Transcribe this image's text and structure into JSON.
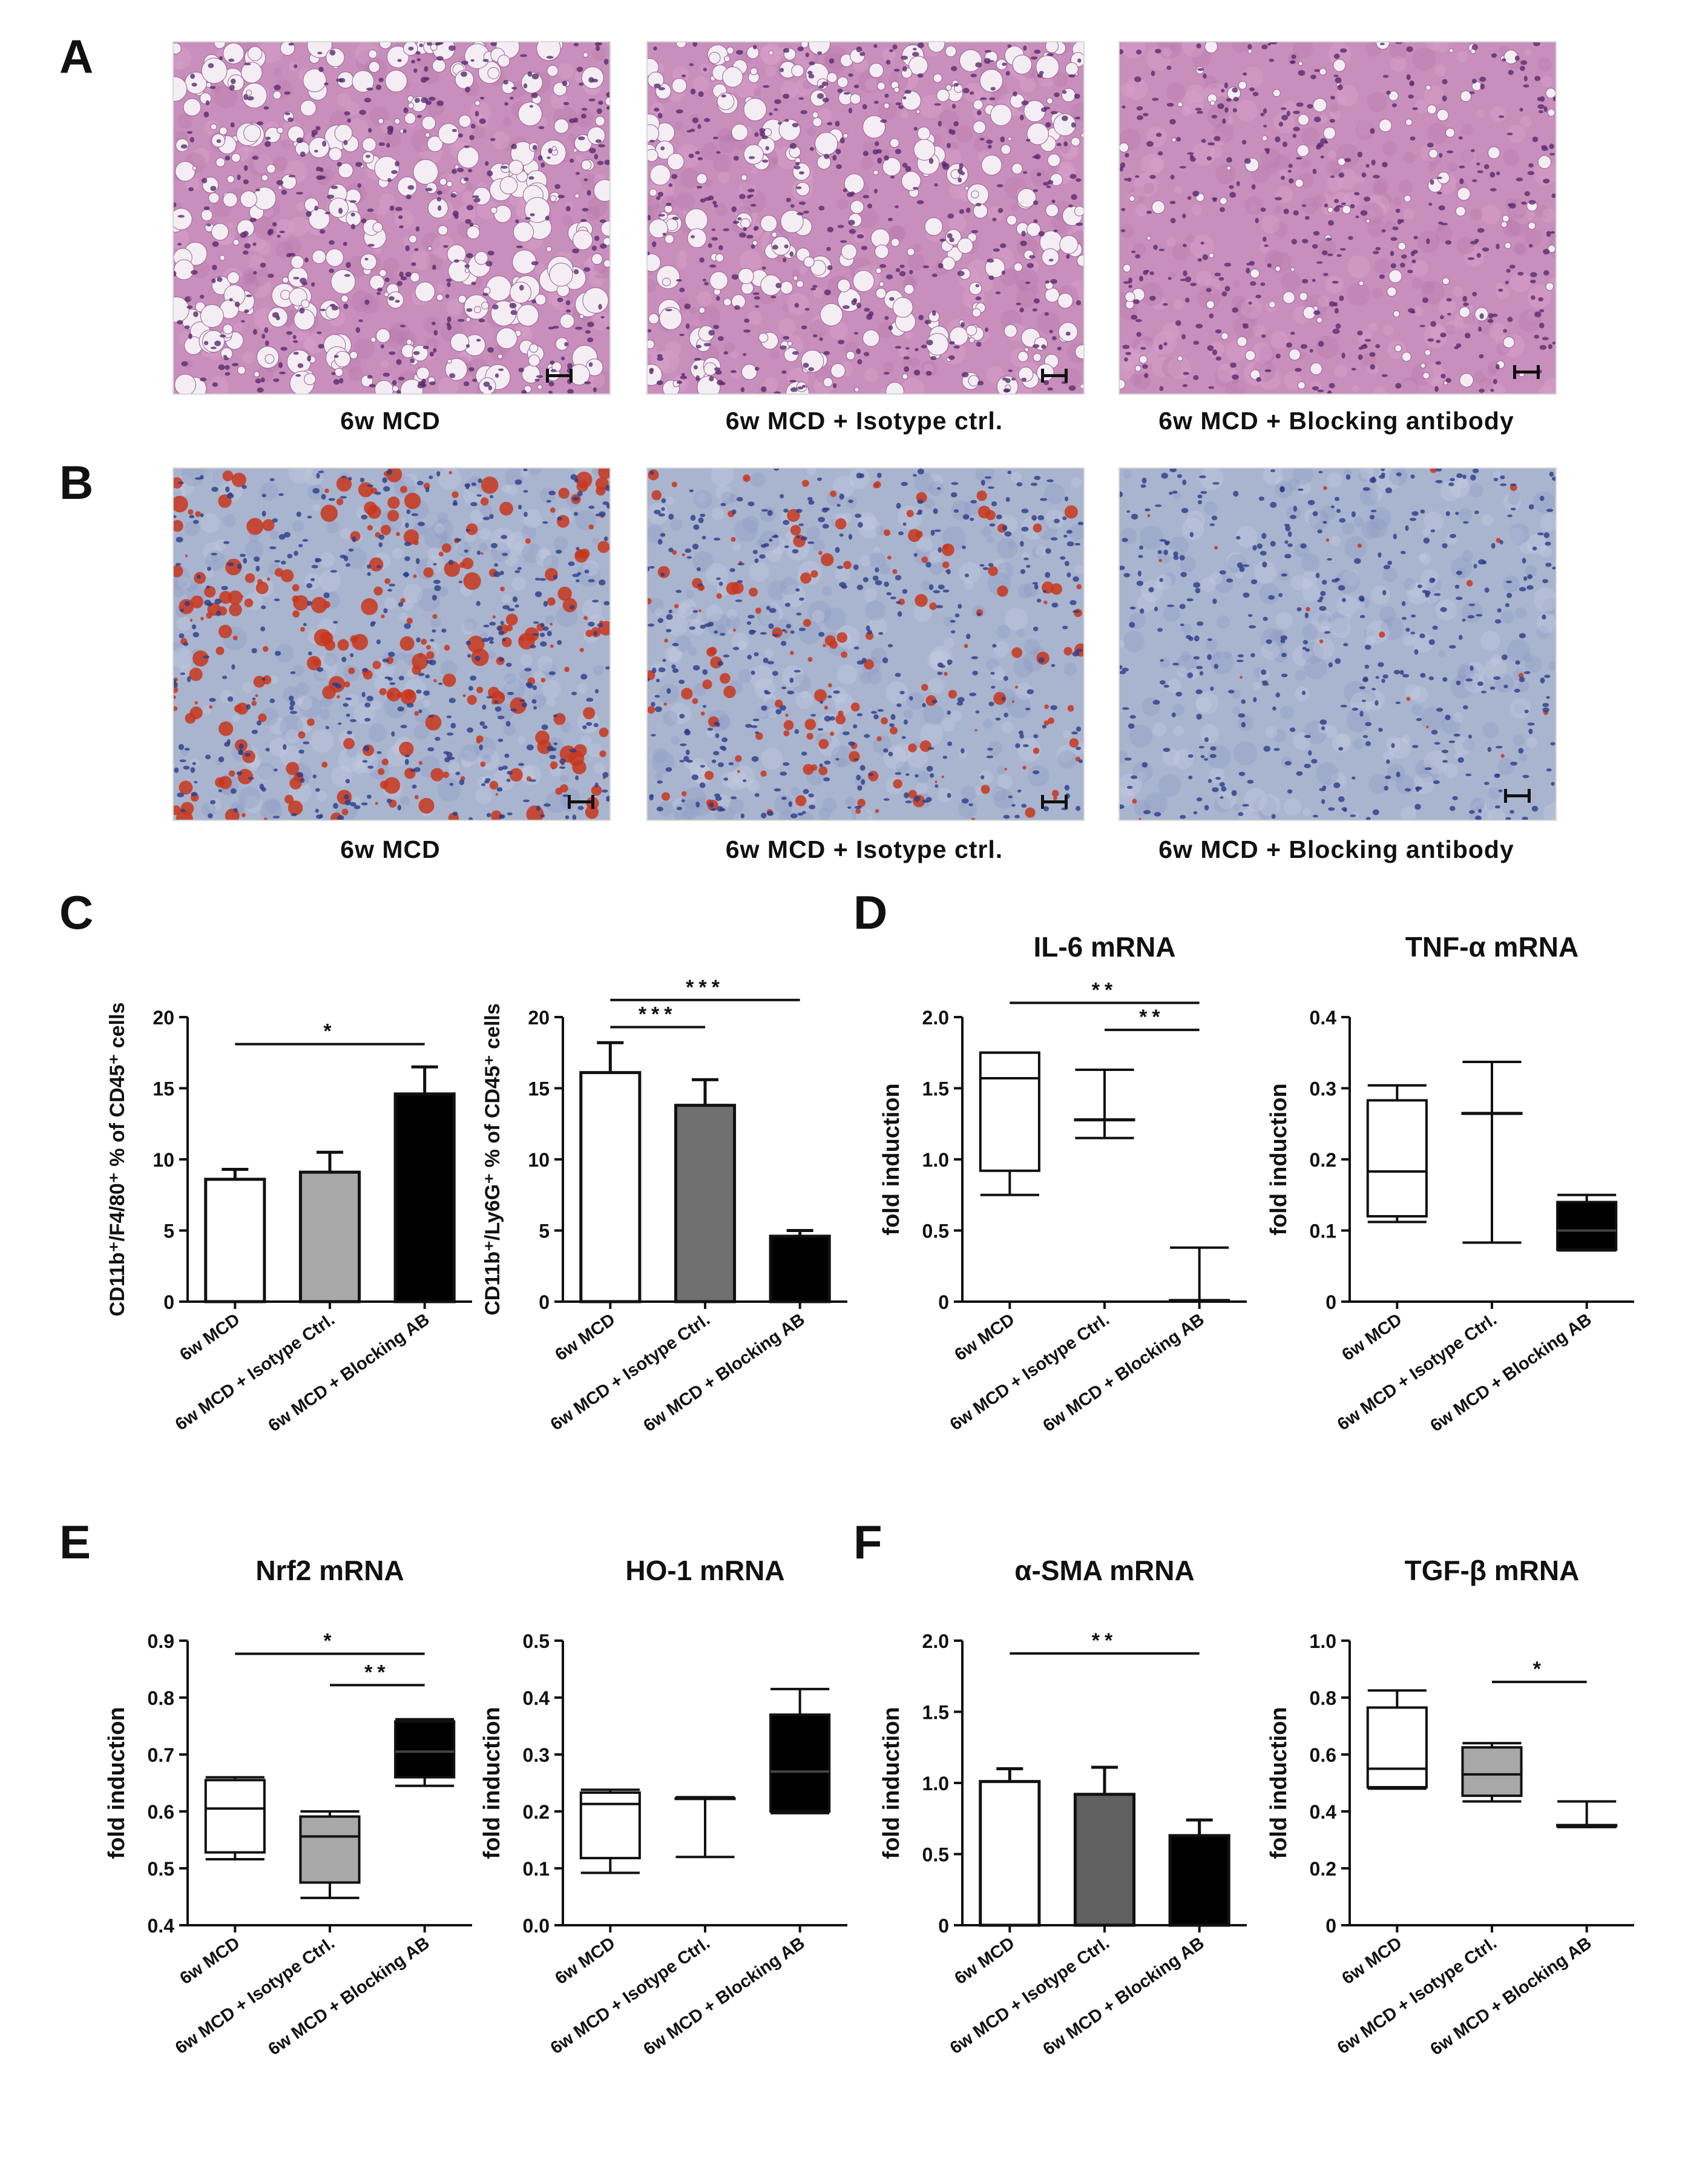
{
  "figure": {
    "panel_letters": [
      "A",
      "B",
      "C",
      "D",
      "E",
      "F"
    ],
    "micrographs": {
      "row_a": [
        {
          "caption": "6w MCD",
          "stain": "H&E",
          "steatosis": 1.0
        },
        {
          "caption": "6w MCD + Isotype ctrl.",
          "stain": "H&E",
          "steatosis": 0.85
        },
        {
          "caption": "6w MCD + Blocking antibody",
          "stain": "H&E",
          "steatosis": 0.25
        }
      ],
      "row_b": [
        {
          "caption": "6w MCD",
          "stain": "Oil Red O",
          "steatosis": 1.0
        },
        {
          "caption": "6w MCD + Isotype ctrl.",
          "stain": "Oil Red O",
          "steatosis": 0.6
        },
        {
          "caption": "6w MCD + Blocking antibody",
          "stain": "Oil Red O",
          "steatosis": 0.05
        }
      ]
    },
    "colors": {
      "he_bg": "#c98fbc",
      "he_nuclei": "#5a2a6e",
      "oro_bg": "#a9b4cf",
      "oro_nuclei": "#2a3c88",
      "oro_lipid": "#c8361c"
    }
  },
  "chart_data": [
    {
      "id": "C1",
      "type": "bar",
      "title": "",
      "ylabel": "CD11b⁺/F4/80⁺ % of CD45⁺ cells",
      "categories": [
        "6w MCD",
        "6w MCD + Isotype Ctrl.",
        "6w MCD + Blocking AB"
      ],
      "values": [
        8.6,
        9.1,
        14.6
      ],
      "errors": [
        0.7,
        1.4,
        1.9
      ],
      "colors": [
        "#ffffff",
        "#a8a8a8",
        "#000000"
      ],
      "ylim": [
        0,
        20
      ],
      "yticks": [
        "0",
        "5",
        "10",
        "15",
        "20"
      ],
      "ytick_values": [
        0,
        5,
        10,
        15,
        20
      ],
      "significance": [
        {
          "from": 0,
          "to": 2,
          "label": "*",
          "y": 18.1
        }
      ]
    },
    {
      "id": "C2",
      "type": "bar",
      "title": "",
      "ylabel": "CD11b⁺/Ly6G⁺ % of CD45⁺ cells",
      "categories": [
        "6w MCD",
        "6w MCD + Isotype Ctrl.",
        "6w MCD + Blocking AB"
      ],
      "values": [
        16.1,
        13.8,
        4.6
      ],
      "errors": [
        2.1,
        1.8,
        0.4
      ],
      "colors": [
        "#ffffff",
        "#707070",
        "#000000"
      ],
      "ylim": [
        0,
        20
      ],
      "yticks": [
        "0",
        "5",
        "10",
        "15",
        "20"
      ],
      "ytick_values": [
        0,
        5,
        10,
        15,
        20
      ],
      "significance": [
        {
          "from": 0,
          "to": 2,
          "label": "***",
          "y": 21.2
        },
        {
          "from": 0,
          "to": 1,
          "label": "***",
          "y": 19.3
        }
      ]
    },
    {
      "id": "D1",
      "type": "box",
      "title": "IL-6 mRNA",
      "ylabel": "fold induction",
      "categories": [
        "6w MCD",
        "6w MCD + Isotype Ctrl.",
        "6w MCD + Blocking AB"
      ],
      "boxes": [
        {
          "min": 0.75,
          "q1": 0.92,
          "median": 1.57,
          "q3": 1.75,
          "max": 1.75
        },
        {
          "min": 1.15,
          "q1": 1.28,
          "median": 1.28,
          "q3": 1.28,
          "max": 1.63
        },
        {
          "min": 0.0,
          "q1": 0.0,
          "median": 0.01,
          "q3": 0.01,
          "max": 0.38
        }
      ],
      "fills": [
        "#ffffff",
        "#ffffff",
        "#ffffff"
      ],
      "ylim": [
        0,
        2.0
      ],
      "yticks": [
        "0",
        "0.5",
        "1.0",
        "1.5",
        "2.0"
      ],
      "ytick_values": [
        0,
        0.5,
        1.0,
        1.5,
        2.0
      ],
      "significance": [
        {
          "from": 0,
          "to": 2,
          "label": "**",
          "y": 2.1
        },
        {
          "from": 1,
          "to": 2,
          "label": "**",
          "y": 1.91
        }
      ]
    },
    {
      "id": "D2",
      "type": "box",
      "title": "TNF-α mRNA",
      "ylabel": "fold induction",
      "categories": [
        "6w MCD",
        "6w MCD + Isotype Ctrl.",
        "6w MCD + Blocking AB"
      ],
      "boxes": [
        {
          "min": 0.112,
          "q1": 0.12,
          "median": 0.183,
          "q3": 0.283,
          "max": 0.304
        },
        {
          "min": 0.083,
          "q1": 0.265,
          "median": 0.265,
          "q3": 0.265,
          "max": 0.337
        },
        {
          "min": 0.072,
          "q1": 0.073,
          "median": 0.1,
          "q3": 0.14,
          "max": 0.15
        }
      ],
      "fills": [
        "#ffffff",
        "#ffffff",
        "#000000"
      ],
      "ylim": [
        0,
        0.4
      ],
      "yticks": [
        "0",
        "0.1",
        "0.2",
        "0.3",
        "0.4"
      ],
      "ytick_values": [
        0,
        0.1,
        0.2,
        0.3,
        0.4
      ],
      "significance": []
    },
    {
      "id": "E1",
      "type": "box",
      "title": "Nrf2 mRNA",
      "ylabel": "fold induction",
      "categories": [
        "6w MCD",
        "6w MCD + Isotype Ctrl.",
        "6w MCD + Blocking AB"
      ],
      "boxes": [
        {
          "min": 0.516,
          "q1": 0.528,
          "median": 0.605,
          "q3": 0.655,
          "max": 0.66
        },
        {
          "min": 0.448,
          "q1": 0.475,
          "median": 0.556,
          "q3": 0.591,
          "max": 0.6
        },
        {
          "min": 0.645,
          "q1": 0.66,
          "median": 0.705,
          "q3": 0.758,
          "max": 0.762
        }
      ],
      "fills": [
        "#ffffff",
        "#a8a8a8",
        "#000000"
      ],
      "ylim": [
        0.4,
        0.9
      ],
      "yticks": [
        "0.4",
        "0.5",
        "0.6",
        "0.7",
        "0.8",
        "0.9"
      ],
      "ytick_values": [
        0.4,
        0.5,
        0.6,
        0.7,
        0.8,
        0.9
      ],
      "significance": [
        {
          "from": 0,
          "to": 2,
          "label": "*",
          "y": 0.877
        },
        {
          "from": 1,
          "to": 2,
          "label": "**",
          "y": 0.822
        }
      ]
    },
    {
      "id": "E2",
      "type": "box",
      "title": "HO-1 mRNA",
      "ylabel": "fold induction",
      "categories": [
        "6w MCD",
        "6w MCD + Isotype Ctrl.",
        "6w MCD + Blocking AB"
      ],
      "boxes": [
        {
          "min": 0.092,
          "q1": 0.118,
          "median": 0.213,
          "q3": 0.233,
          "max": 0.238
        },
        {
          "min": 0.12,
          "q1": 0.223,
          "median": 0.223,
          "q3": 0.223,
          "max": 0.225
        },
        {
          "min": 0.197,
          "q1": 0.2,
          "median": 0.27,
          "q3": 0.37,
          "max": 0.415
        }
      ],
      "fills": [
        "#ffffff",
        "#ffffff",
        "#000000"
      ],
      "ylim": [
        0,
        0.5
      ],
      "yticks": [
        "0.0",
        "0.1",
        "0.2",
        "0.3",
        "0.4",
        "0.5"
      ],
      "ytick_values": [
        0,
        0.1,
        0.2,
        0.3,
        0.4,
        0.5
      ],
      "significance": []
    },
    {
      "id": "F1",
      "type": "bar",
      "title": "α-SMA mRNA",
      "ylabel": "fold induction",
      "categories": [
        "6w MCD",
        "6w MCD + Isotype Ctrl.",
        "6w MCD + Blocking AB"
      ],
      "values": [
        1.01,
        0.92,
        0.63
      ],
      "errors": [
        0.09,
        0.19,
        0.11
      ],
      "colors": [
        "#ffffff",
        "#606060",
        "#000000"
      ],
      "ylim": [
        0,
        2.0
      ],
      "yticks": [
        "0",
        "0.5",
        "1.0",
        "1.5",
        "2.0"
      ],
      "ytick_values": [
        0,
        0.5,
        1.0,
        1.5,
        2.0
      ],
      "significance": [
        {
          "from": 0,
          "to": 2,
          "label": "**",
          "y": 1.91
        }
      ]
    },
    {
      "id": "F2",
      "type": "box",
      "title": "TGF-β mRNA",
      "ylabel": "fold induction",
      "categories": [
        "6w MCD",
        "6w MCD + Isotype Ctrl.",
        "6w MCD + Blocking AB"
      ],
      "boxes": [
        {
          "min": 0.48,
          "q1": 0.485,
          "median": 0.55,
          "q3": 0.765,
          "max": 0.825
        },
        {
          "min": 0.435,
          "q1": 0.455,
          "median": 0.53,
          "q3": 0.625,
          "max": 0.64
        },
        {
          "min": 0.345,
          "q1": 0.348,
          "median": 0.35,
          "q3": 0.352,
          "max": 0.435
        }
      ],
      "fills": [
        "#ffffff",
        "#a8a8a8",
        "#ffffff"
      ],
      "ylim": [
        0,
        1.0
      ],
      "yticks": [
        "0",
        "0.2",
        "0.4",
        "0.6",
        "0.8",
        "1.0"
      ],
      "ytick_values": [
        0,
        0.2,
        0.4,
        0.6,
        0.8,
        1.0
      ],
      "significance": [
        {
          "from": 1,
          "to": 2,
          "label": "*",
          "y": 0.855
        }
      ]
    }
  ]
}
